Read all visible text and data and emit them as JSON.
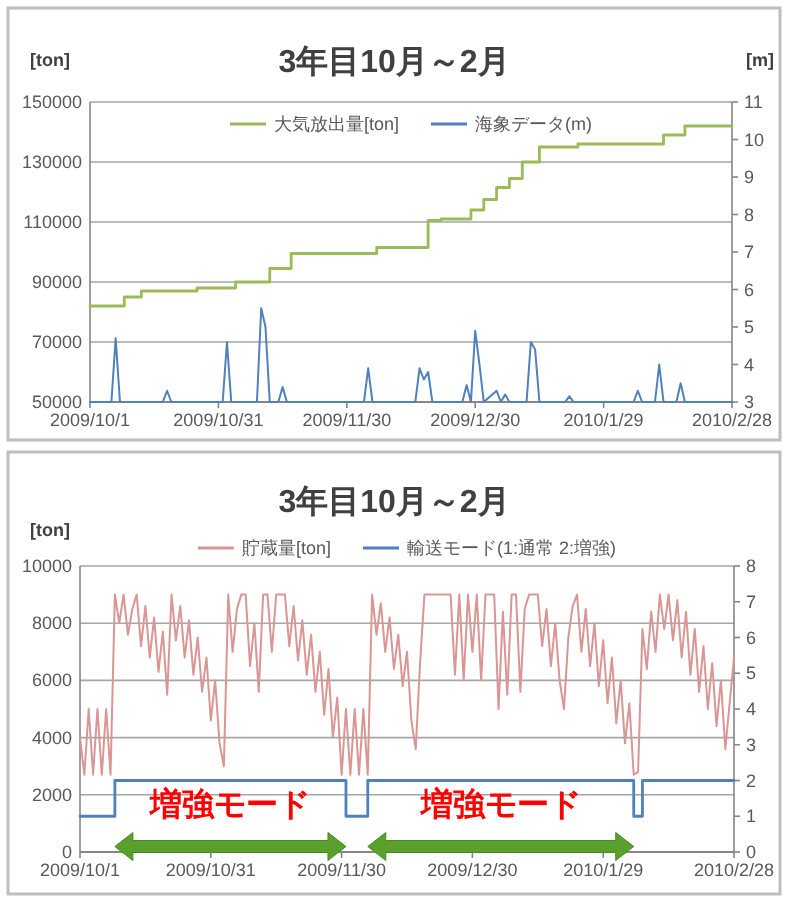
{
  "chart_data": [
    {
      "type": "line",
      "title": "3年目10月～2月",
      "ylabel": "[ton]",
      "y2label": "[m]",
      "xlim": [
        "2009-10-01",
        "2010-02-28"
      ],
      "xticks": [
        {
          "value": "2009-10-01",
          "label": "2009/10/1"
        },
        {
          "value": "2009-10-31",
          "label": "2009/10/31"
        },
        {
          "value": "2009-11-30",
          "label": "2009/11/30"
        },
        {
          "value": "2009-12-30",
          "label": "2009/12/30"
        },
        {
          "value": "2010-01-29",
          "label": "2010/1/29"
        },
        {
          "value": "2010-02-28",
          "label": "2010/2/28"
        }
      ],
      "ylim": [
        50000,
        150000
      ],
      "yticks": [
        50000,
        70000,
        90000,
        110000,
        130000,
        150000
      ],
      "y2lim": [
        3,
        11
      ],
      "y2ticks": [
        3,
        4,
        5,
        6,
        7,
        8,
        9,
        10,
        11
      ],
      "grid": "y",
      "legend": "top",
      "series": [
        {
          "name": "大気放出量[ton]",
          "type": "step",
          "color": "#9bbb59",
          "x": [
            "2009-10-01",
            "2009-10-09",
            "2009-10-13",
            "2009-10-26",
            "2009-11-04",
            "2009-11-12",
            "2009-11-17",
            "2009-12-07",
            "2009-12-19",
            "2009-12-22",
            "2009-12-29",
            "2010-01-01",
            "2010-01-04",
            "2010-01-07",
            "2010-01-10",
            "2010-01-14",
            "2010-01-23",
            "2010-02-12",
            "2010-02-17",
            "2010-02-28"
          ],
          "values": [
            82000,
            85000,
            87000,
            88000,
            90000,
            94500,
            99500,
            101500,
            110500,
            111000,
            114000,
            117500,
            121500,
            124500,
            130000,
            135000,
            136000,
            139000,
            142000,
            142000
          ]
        },
        {
          "name": "海象データ(m)",
          "type": "line",
          "axis": "y2",
          "color": "#4f81bd",
          "x": [
            "2009-10-01",
            "2009-10-06",
            "2009-10-07",
            "2009-10-08",
            "2009-10-18",
            "2009-10-19",
            "2009-10-20",
            "2009-11-01",
            "2009-11-02",
            "2009-11-03",
            "2009-11-09",
            "2009-11-10",
            "2009-11-11",
            "2009-11-12",
            "2009-11-14",
            "2009-11-15",
            "2009-11-16",
            "2009-12-04",
            "2009-12-05",
            "2009-12-06",
            "2009-12-16",
            "2009-12-17",
            "2009-12-18",
            "2009-12-19",
            "2009-12-20",
            "2009-12-27",
            "2009-12-28",
            "2009-12-29",
            "2009-12-30",
            "2009-12-31",
            "2010-01-01",
            "2010-01-04",
            "2010-01-05",
            "2010-01-06",
            "2010-01-07",
            "2010-01-11",
            "2010-01-12",
            "2010-01-13",
            "2010-01-14",
            "2010-01-20",
            "2010-01-21",
            "2010-01-22",
            "2010-02-05",
            "2010-02-06",
            "2010-02-07",
            "2010-02-10",
            "2010-02-11",
            "2010-02-12",
            "2010-02-15",
            "2010-02-16",
            "2010-02-17",
            "2010-02-28"
          ],
          "values": [
            3,
            3,
            4.7,
            3,
            3,
            3.3,
            3,
            3,
            4.6,
            3,
            3,
            5.5,
            5.0,
            3,
            3,
            3.4,
            3,
            3,
            3.9,
            3,
            3,
            3.9,
            3.6,
            3.8,
            3,
            3,
            3.45,
            3,
            4.9,
            4.0,
            3,
            3.3,
            3,
            3.2,
            3,
            3,
            4.6,
            4.4,
            3,
            3,
            3.15,
            3,
            3,
            3.3,
            3,
            3,
            4.0,
            3,
            3,
            3.5,
            3,
            3
          ]
        }
      ]
    },
    {
      "type": "line",
      "title": "3年目10月～2月",
      "ylabel": "[ton]",
      "xlim": [
        "2009-10-01",
        "2010-02-28"
      ],
      "xticks": [
        {
          "value": "2009-10-01",
          "label": "2009/10/1"
        },
        {
          "value": "2009-10-31",
          "label": "2009/10/31"
        },
        {
          "value": "2009-11-30",
          "label": "2009/11/30"
        },
        {
          "value": "2009-12-30",
          "label": "2009/12/30"
        },
        {
          "value": "2010-01-29",
          "label": "2010/1/29"
        },
        {
          "value": "2010-02-28",
          "label": "2010/2/28"
        }
      ],
      "ylim": [
        0,
        10000
      ],
      "yticks": [
        0,
        2000,
        4000,
        6000,
        8000,
        10000
      ],
      "y2lim": [
        0,
        8
      ],
      "y2ticks": [
        0,
        1,
        2,
        3,
        4,
        5,
        6,
        7,
        8
      ],
      "grid": "y",
      "legend": "top",
      "annotations": [
        "増強モード",
        "増強モード"
      ],
      "series": [
        {
          "name": "貯蔵量[ton]",
          "type": "line",
          "color": "#d99694",
          "x": [
            "2009-10-01",
            "2009-10-02",
            "2009-10-03",
            "2009-10-04",
            "2009-10-05",
            "2009-10-06",
            "2009-10-07",
            "2009-10-08",
            "2009-10-09",
            "2009-10-10",
            "2009-10-11",
            "2009-10-12",
            "2009-10-13",
            "2009-10-14",
            "2009-10-15",
            "2009-10-16",
            "2009-10-17",
            "2009-10-18",
            "2009-10-19",
            "2009-10-20",
            "2009-10-21",
            "2009-10-22",
            "2009-10-23",
            "2009-10-24",
            "2009-10-25",
            "2009-10-26",
            "2009-10-27",
            "2009-10-28",
            "2009-10-29",
            "2009-10-30",
            "2009-10-31",
            "2009-11-01",
            "2009-11-02",
            "2009-11-03",
            "2009-11-04",
            "2009-11-05",
            "2009-11-06",
            "2009-11-07",
            "2009-11-08",
            "2009-11-09",
            "2009-11-10",
            "2009-11-11",
            "2009-11-12",
            "2009-11-13",
            "2009-11-14",
            "2009-11-15",
            "2009-11-16",
            "2009-11-17",
            "2009-11-18",
            "2009-11-19",
            "2009-11-20",
            "2009-11-21",
            "2009-11-22",
            "2009-11-23",
            "2009-11-24",
            "2009-11-25",
            "2009-11-26",
            "2009-11-27",
            "2009-11-28",
            "2009-11-29",
            "2009-11-30",
            "2009-12-01",
            "2009-12-02",
            "2009-12-03",
            "2009-12-04",
            "2009-12-05",
            "2009-12-06",
            "2009-12-07",
            "2009-12-08",
            "2009-12-09",
            "2009-12-10",
            "2009-12-11",
            "2009-12-12",
            "2009-12-13",
            "2009-12-14",
            "2009-12-15",
            "2009-12-16",
            "2009-12-17",
            "2009-12-18",
            "2009-12-19",
            "2009-12-20",
            "2009-12-21",
            "2009-12-22",
            "2009-12-23",
            "2009-12-24",
            "2009-12-25",
            "2009-12-26",
            "2009-12-27",
            "2009-12-28",
            "2009-12-29",
            "2009-12-30",
            "2009-12-31",
            "2010-01-01",
            "2010-01-02",
            "2010-01-03",
            "2010-01-04",
            "2010-01-05",
            "2010-01-06",
            "2010-01-07",
            "2010-01-08",
            "2010-01-09",
            "2010-01-10",
            "2010-01-11",
            "2010-01-12",
            "2010-01-13",
            "2010-01-14",
            "2010-01-15",
            "2010-01-16",
            "2010-01-17",
            "2010-01-18",
            "2010-01-19",
            "2010-01-20",
            "2010-01-21",
            "2010-01-22",
            "2010-01-23",
            "2010-01-24",
            "2010-01-25",
            "2010-01-26",
            "2010-01-27",
            "2010-01-28",
            "2010-01-29",
            "2010-01-30",
            "2010-01-31",
            "2010-02-01",
            "2010-02-02",
            "2010-02-03",
            "2010-02-04",
            "2010-02-05",
            "2010-02-06",
            "2010-02-07",
            "2010-02-08",
            "2010-02-09",
            "2010-02-10",
            "2010-02-11",
            "2010-02-12",
            "2010-02-13",
            "2010-02-14",
            "2010-02-15",
            "2010-02-16",
            "2010-02-17",
            "2010-02-18",
            "2010-02-19",
            "2010-02-20",
            "2010-02-21",
            "2010-02-22",
            "2010-02-23",
            "2010-02-24",
            "2010-02-25",
            "2010-02-26",
            "2010-02-27",
            "2010-02-28"
          ],
          "values": [
            4000,
            2700,
            5000,
            2700,
            5000,
            2700,
            5000,
            2700,
            9000,
            8000,
            9000,
            7600,
            8500,
            9000,
            7200,
            8600,
            6800,
            8200,
            6300,
            7700,
            5500,
            9000,
            7400,
            8600,
            6800,
            8100,
            6200,
            7500,
            5600,
            6800,
            4600,
            6000,
            3800,
            3000,
            9000,
            7000,
            8500,
            9000,
            9000,
            6500,
            8000,
            5600,
            9000,
            9000,
            7000,
            9000,
            9000,
            9000,
            7200,
            8600,
            6700,
            8100,
            6200,
            7600,
            5600,
            7000,
            4800,
            6400,
            4000,
            5400,
            2700,
            5000,
            2700,
            5000,
            2700,
            5000,
            2700,
            9000,
            7600,
            8700,
            7000,
            8200,
            6400,
            7600,
            5800,
            7000,
            4600,
            3600,
            6600,
            9000,
            9000,
            9000,
            9000,
            9000,
            9000,
            9000,
            6200,
            9000,
            6000,
            9000,
            7000,
            9000,
            6000,
            9000,
            9000,
            9000,
            5000,
            8400,
            5500,
            9000,
            9000,
            5600,
            8500,
            9000,
            9000,
            9000,
            7200,
            8500,
            6500,
            8000,
            6000,
            5000,
            7500,
            8600,
            9000,
            7000,
            8500,
            6500,
            8000,
            5800,
            7400,
            5200,
            6800,
            4500,
            6000,
            3800,
            5200,
            2700,
            2800,
            7800,
            6400,
            8400,
            7000,
            9000,
            7800,
            9000,
            7400,
            8800,
            6800,
            8400,
            6200,
            7800,
            5600,
            7200,
            5000,
            6600,
            4400,
            6000,
            3600,
            5200,
            6800
          ]
        },
        {
          "name": "輸送モード(1:通常 2:増強)",
          "type": "step",
          "axis": "y2",
          "color": "#4f81bd",
          "x": [
            "2009-10-01",
            "2009-10-09",
            "2009-12-01",
            "2009-12-06",
            "2010-02-05",
            "2010-02-07",
            "2010-02-28"
          ],
          "values": [
            1,
            2,
            1,
            2,
            1,
            2,
            2
          ]
        }
      ]
    }
  ]
}
